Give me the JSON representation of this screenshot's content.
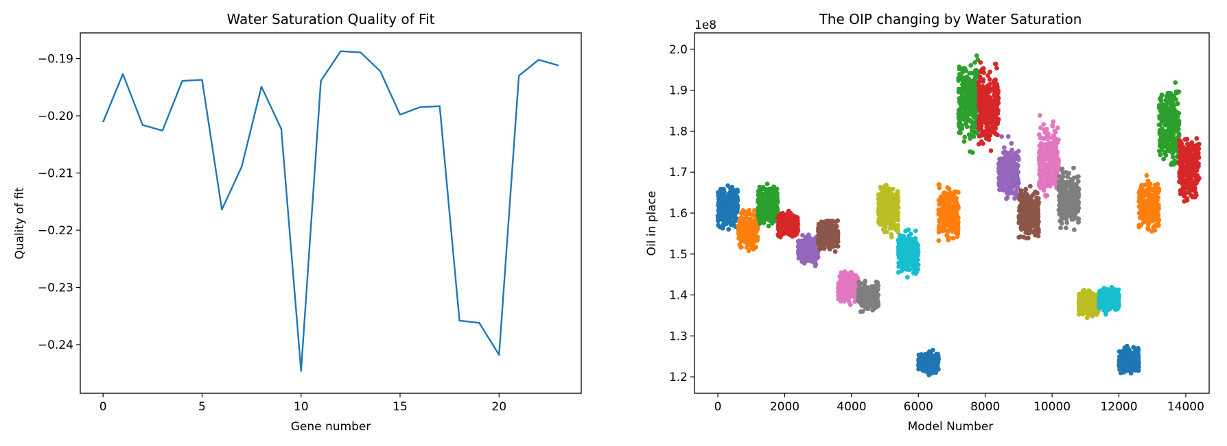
{
  "chart_data": [
    {
      "type": "line",
      "title": "Water Saturation Quality of Fit",
      "xlabel": "Gene number",
      "ylabel": "Quality of fit",
      "xlim": [
        -1.15,
        24.15
      ],
      "ylim": [
        -0.2485,
        -0.1855
      ],
      "xticks": [
        0,
        5,
        10,
        15,
        20
      ],
      "xtick_labels": [
        "0",
        "5",
        "10",
        "15",
        "20"
      ],
      "yticks": [
        -0.24,
        -0.23,
        -0.22,
        -0.21,
        -0.2,
        -0.19
      ],
      "ytick_labels": [
        "−0.24",
        "−0.23",
        "−0.22",
        "−0.21",
        "−0.20",
        "−0.19"
      ],
      "grid": false,
      "series": [
        {
          "color": "#1f77b4",
          "x": [
            0,
            1,
            2,
            3,
            4,
            5,
            6,
            7,
            8,
            9,
            10,
            11,
            12,
            13,
            14,
            15,
            16,
            17,
            18,
            19,
            20,
            21,
            22,
            23
          ],
          "values": [
            -0.2011,
            -0.1927,
            -0.2016,
            -0.2026,
            -0.1939,
            -0.1937,
            -0.2164,
            -0.2089,
            -0.1949,
            -0.2023,
            -0.2446,
            -0.1939,
            -0.1887,
            -0.1889,
            -0.1922,
            -0.1998,
            -0.1985,
            -0.1983,
            -0.2358,
            -0.2362,
            -0.2418,
            -0.193,
            -0.1902,
            -0.1912
          ]
        }
      ]
    },
    {
      "type": "scatter",
      "title": "The OIP changing by Water Saturation",
      "xlabel": "Model Number",
      "ylabel": "Oil in place",
      "y_offset_label": "1e8",
      "xlim": [
        -700,
        14700
      ],
      "ylim": [
        1.16,
        2.04
      ],
      "xticks": [
        0,
        2000,
        4000,
        6000,
        8000,
        10000,
        12000,
        14000
      ],
      "xtick_labels": [
        "0",
        "2000",
        "4000",
        "6000",
        "8000",
        "10000",
        "12000",
        "14000"
      ],
      "yticks": [
        1.2,
        1.3,
        1.4,
        1.5,
        1.6,
        1.7,
        1.8,
        1.9,
        2.0
      ],
      "ytick_labels": [
        "1.2",
        "1.3",
        "1.4",
        "1.5",
        "1.6",
        "1.7",
        "1.8",
        "1.9",
        "2.0"
      ],
      "grid": false,
      "series": [
        {
          "color": "#1f77b4",
          "x_range": [
            0,
            600
          ],
          "y_range": [
            1.55,
            1.68
          ]
        },
        {
          "color": "#ff7f0e",
          "x_range": [
            600,
            1200
          ],
          "y_range": [
            1.5,
            1.62
          ]
        },
        {
          "color": "#2ca02c",
          "x_range": [
            1200,
            1800
          ],
          "y_range": [
            1.55,
            1.68
          ]
        },
        {
          "color": "#d62728",
          "x_range": [
            1800,
            2400
          ],
          "y_range": [
            1.53,
            1.61
          ]
        },
        {
          "color": "#9467bd",
          "x_range": [
            2400,
            3000
          ],
          "y_range": [
            1.46,
            1.56
          ]
        },
        {
          "color": "#8c564b",
          "x_range": [
            3000,
            3600
          ],
          "y_range": [
            1.5,
            1.59
          ]
        },
        {
          "color": "#e377c2",
          "x_range": [
            3600,
            4200
          ],
          "y_range": [
            1.37,
            1.47
          ]
        },
        {
          "color": "#7f7f7f",
          "x_range": [
            4200,
            4800
          ],
          "y_range": [
            1.35,
            1.44
          ]
        },
        {
          "color": "#bcbd22",
          "x_range": [
            4800,
            5400
          ],
          "y_range": [
            1.53,
            1.69
          ]
        },
        {
          "color": "#17becf",
          "x_range": [
            5400,
            6000
          ],
          "y_range": [
            1.43,
            1.57
          ]
        },
        {
          "color": "#1f77b4",
          "x_range": [
            6000,
            6600
          ],
          "y_range": [
            1.2,
            1.27
          ]
        },
        {
          "color": "#ff7f0e",
          "x_range": [
            6600,
            7200
          ],
          "y_range": [
            1.52,
            1.68
          ]
        },
        {
          "color": "#2ca02c",
          "x_range": [
            7200,
            7800
          ],
          "y_range": [
            1.74,
            2.0
          ]
        },
        {
          "color": "#d62728",
          "x_range": [
            7800,
            8400
          ],
          "y_range": [
            1.73,
            1.99
          ]
        },
        {
          "color": "#9467bd",
          "x_range": [
            8400,
            9000
          ],
          "y_range": [
            1.61,
            1.79
          ]
        },
        {
          "color": "#8c564b",
          "x_range": [
            9000,
            9600
          ],
          "y_range": [
            1.52,
            1.68
          ]
        },
        {
          "color": "#e377c2",
          "x_range": [
            9600,
            10200
          ],
          "y_range": [
            1.62,
            1.85
          ]
        },
        {
          "color": "#7f7f7f",
          "x_range": [
            10200,
            10800
          ],
          "y_range": [
            1.54,
            1.72
          ]
        },
        {
          "color": "#bcbd22",
          "x_range": [
            10800,
            11400
          ],
          "y_range": [
            1.34,
            1.42
          ]
        },
        {
          "color": "#17becf",
          "x_range": [
            11400,
            12000
          ],
          "y_range": [
            1.35,
            1.43
          ]
        },
        {
          "color": "#1f77b4",
          "x_range": [
            12000,
            12600
          ],
          "y_range": [
            1.2,
            1.28
          ]
        },
        {
          "color": "#ff7f0e",
          "x_range": [
            12600,
            13200
          ],
          "y_range": [
            1.54,
            1.7
          ]
        },
        {
          "color": "#2ca02c",
          "x_range": [
            13200,
            13800
          ],
          "y_range": [
            1.69,
            1.94
          ]
        },
        {
          "color": "#d62728",
          "x_range": [
            13800,
            14400
          ],
          "y_range": [
            1.61,
            1.81
          ]
        }
      ]
    }
  ]
}
